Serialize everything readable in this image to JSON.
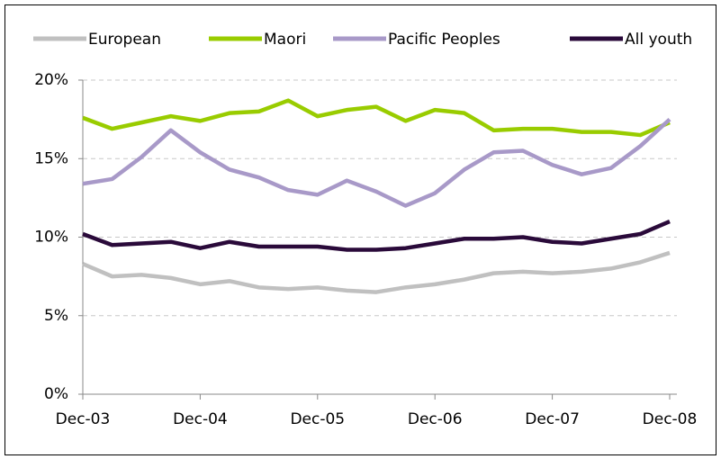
{
  "chart_data": {
    "type": "line",
    "categories": [
      "Dec-03",
      null,
      null,
      null,
      "Dec-04",
      null,
      null,
      null,
      "Dec-05",
      null,
      null,
      null,
      "Dec-06",
      null,
      null,
      null,
      "Dec-07",
      null,
      null,
      null,
      "Dec-08"
    ],
    "series": [
      {
        "name": "European",
        "color": "#c0c0c0",
        "values": [
          8.3,
          7.5,
          7.6,
          7.4,
          7.0,
          7.2,
          6.8,
          6.7,
          6.8,
          6.6,
          6.5,
          6.8,
          7.0,
          7.3,
          7.7,
          7.8,
          7.7,
          7.8,
          8.0,
          8.4,
          9.0
        ]
      },
      {
        "name": "Maori",
        "color": "#99cc00",
        "values": [
          17.6,
          16.9,
          17.3,
          17.7,
          17.4,
          17.9,
          18.0,
          18.7,
          17.7,
          18.1,
          18.3,
          17.4,
          18.1,
          17.9,
          16.8,
          16.9,
          16.9,
          16.7,
          16.7,
          16.5,
          17.3
        ]
      },
      {
        "name": "Pacific Peoples",
        "color": "#a899c8",
        "values": [
          13.4,
          13.7,
          15.1,
          16.8,
          15.4,
          14.3,
          13.8,
          13.0,
          12.7,
          13.6,
          12.9,
          12.0,
          12.8,
          14.3,
          15.4,
          15.5,
          14.6,
          14.0,
          14.4,
          15.8,
          17.5
        ]
      },
      {
        "name": "All youth",
        "color": "#2a0a3a",
        "values": [
          10.2,
          9.5,
          9.6,
          9.7,
          9.3,
          9.7,
          9.4,
          9.4,
          9.4,
          9.2,
          9.2,
          9.3,
          9.6,
          9.9,
          9.9,
          10.0,
          9.7,
          9.6,
          9.9,
          10.2,
          11.0
        ]
      }
    ],
    "ylim": [
      0,
      20
    ],
    "yticks": [
      {
        "value": 0,
        "label": "0%"
      },
      {
        "value": 5,
        "label": "5%"
      },
      {
        "value": 10,
        "label": "10%"
      },
      {
        "value": 15,
        "label": "15%"
      },
      {
        "value": 20,
        "label": "20%"
      }
    ],
    "grid": true,
    "legend": "top"
  }
}
